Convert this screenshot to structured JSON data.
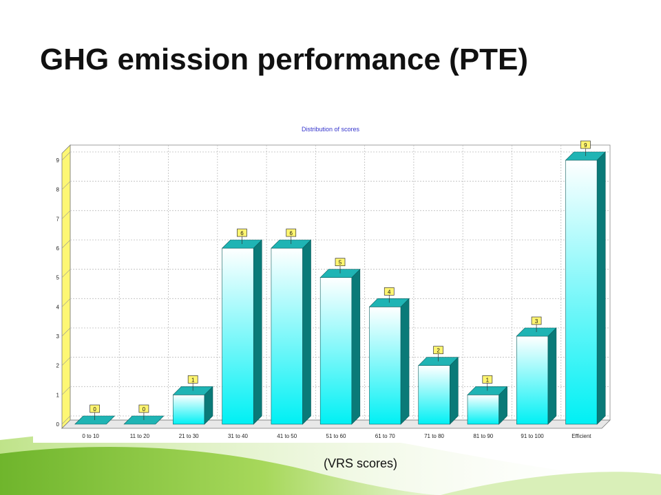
{
  "slide": {
    "title": "GHG emission performance (PTE)",
    "caption": "(VRS scores)"
  },
  "colors": {
    "bar_front_top": "#ffffff",
    "bar_front_bottom": "#00f0f4",
    "bar_side": "#0a7a78",
    "bar_top": "#1fb4b4",
    "wall": "#fdf774",
    "label_box": "#fff570",
    "title_color": "#3333cc",
    "swoosh_green": "#8bc53f"
  },
  "chart_data": {
    "type": "bar",
    "title": "Distribution of scores",
    "categories": [
      "0 to 10",
      "11 to 20",
      "21 to 30",
      "31 to 40",
      "41 to 50",
      "51 to 60",
      "61 to 70",
      "71 to 80",
      "81 to 90",
      "91 to 100",
      "Efficient"
    ],
    "values": [
      0,
      0,
      1,
      6,
      6,
      5,
      4,
      2,
      1,
      3,
      9
    ],
    "ylim": [
      0,
      9
    ],
    "yticks": [
      0,
      1,
      2,
      3,
      4,
      5,
      6,
      7,
      8,
      9
    ],
    "grid": true,
    "bar_style": "3d",
    "data_labels": true
  }
}
